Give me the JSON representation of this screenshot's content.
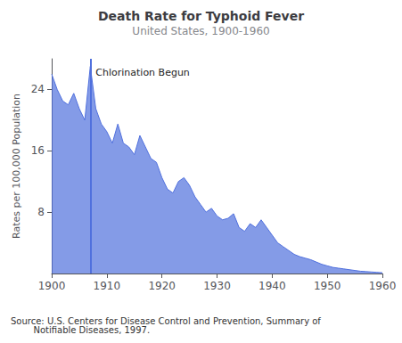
{
  "chart_data": {
    "type": "area",
    "title": "Death Rate for Typhoid Fever",
    "subtitle": "United States, 1900-1960",
    "ylabel": "Rates per 100,000 Population",
    "source": "Source: U.S. Centers for Disease Control and Prevention, Summary of\n        Notifiable Diseases, 1997.",
    "annotations": [
      {
        "x": 1907,
        "text": "Chlorination Begun"
      }
    ],
    "x": [
      1900,
      1901,
      1902,
      1903,
      1904,
      1905,
      1906,
      1907,
      1908,
      1909,
      1910,
      1911,
      1912,
      1913,
      1914,
      1915,
      1916,
      1917,
      1918,
      1919,
      1920,
      1921,
      1922,
      1923,
      1924,
      1925,
      1926,
      1927,
      1928,
      1929,
      1930,
      1931,
      1932,
      1933,
      1934,
      1935,
      1936,
      1937,
      1938,
      1939,
      1940,
      1941,
      1942,
      1943,
      1944,
      1945,
      1946,
      1947,
      1948,
      1949,
      1950,
      1951,
      1952,
      1953,
      1954,
      1955,
      1956,
      1957,
      1958,
      1959,
      1960
    ],
    "values": [
      26.0,
      24.0,
      22.5,
      22.0,
      23.5,
      21.5,
      20.0,
      27.0,
      21.5,
      19.5,
      18.5,
      17.0,
      19.5,
      17.0,
      16.5,
      15.5,
      18.0,
      16.5,
      15.0,
      14.5,
      12.5,
      11.0,
      10.5,
      12.0,
      12.5,
      11.5,
      10.0,
      9.0,
      8.0,
      8.5,
      7.5,
      7.0,
      7.2,
      7.8,
      6.0,
      5.5,
      6.5,
      6.0,
      7.0,
      6.0,
      5.0,
      4.0,
      3.5,
      3.0,
      2.5,
      2.2,
      2.0,
      1.8,
      1.5,
      1.2,
      1.0,
      0.8,
      0.7,
      0.6,
      0.5,
      0.4,
      0.3,
      0.25,
      0.2,
      0.15,
      0.1
    ],
    "xlim": [
      1900,
      1960
    ],
    "xticks": [
      1900,
      1910,
      1920,
      1930,
      1940,
      1950,
      1960
    ],
    "ylim": [
      0,
      28
    ],
    "yticks": [
      8,
      16,
      24
    ],
    "grid": false
  }
}
